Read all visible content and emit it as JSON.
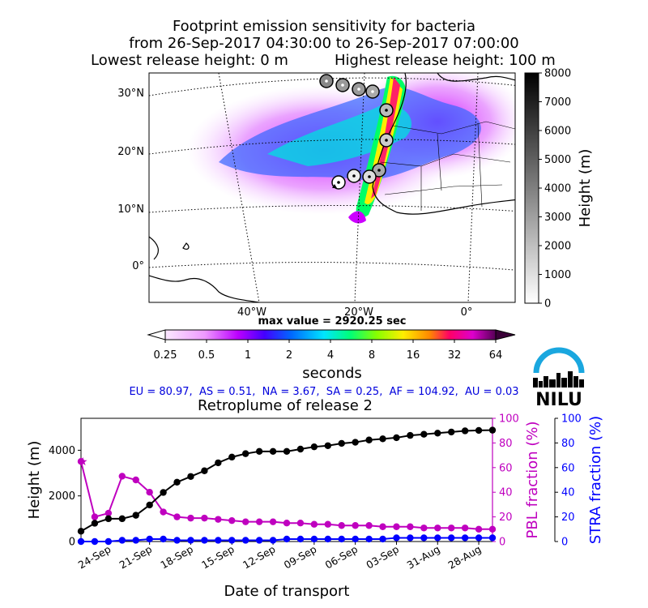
{
  "header": {
    "title_line1": "Footprint emission sensitivity for bacteria",
    "title_line2": "from 26-Sep-2017 04:30:00 to 26-Sep-2017 07:00:00",
    "lowest_release": "Lowest release height: 0 m",
    "highest_release": "Highest release height: 100 m"
  },
  "map": {
    "lat_labels": [
      "30°N",
      "20°N",
      "10°N",
      "0°"
    ],
    "lon_labels": [
      "40°W",
      "20°W",
      "0°"
    ],
    "max_value_text": "max value = 2920.25 sec"
  },
  "height_colorbar": {
    "label": "Height (m)",
    "ticks": [
      "0",
      "1000",
      "2000",
      "3000",
      "4000",
      "5000",
      "6000",
      "7000",
      "8000"
    ]
  },
  "sensitivity_colorbar": {
    "label": "seconds",
    "ticks": [
      "0.25",
      "0.5",
      "1",
      "2",
      "4",
      "8",
      "16",
      "32",
      "64"
    ]
  },
  "fractions_text": "EU = 80.97,  AS = 0.51,  NA = 3.67,  SA = 0.25,  AF = 104.92,  AU = 0.03",
  "logo": {
    "text": "NILU",
    "color": "#1aa7df"
  },
  "chart_data": {
    "type": "line",
    "title": "Retroplume of release 2",
    "xlabel": "Date of transport",
    "ylabel_left": "Height (m)",
    "ylabel_right1": "PBL fraction (%)",
    "ylabel_right2": "STRA fraction (%)",
    "x_tick_labels": [
      "24-Sep",
      "21-Sep",
      "18-Sep",
      "15-Sep",
      "12-Sep",
      "09-Sep",
      "06-Sep",
      "03-Sep",
      "31-Aug",
      "28-Aug"
    ],
    "x_tick_days_before_start": [
      2,
      5,
      8,
      11,
      14,
      17,
      20,
      23,
      26,
      29
    ],
    "x_range_days_before_start": [
      0,
      30
    ],
    "y_left_ticks": [
      "0",
      "2000",
      "4000"
    ],
    "y_left_range": [
      0,
      5400
    ],
    "y_right_ticks": [
      "0",
      "20",
      "40",
      "60",
      "80",
      "100"
    ],
    "y_right_range": [
      0,
      100
    ],
    "colors": {
      "height": "#000000",
      "pbl": "#bf00bf",
      "stra": "#0000ff"
    },
    "series": [
      {
        "name": "Height",
        "axis": "left",
        "x": [
          0,
          1,
          2,
          3,
          4,
          5,
          6,
          7,
          8,
          9,
          10,
          11,
          12,
          13,
          14,
          15,
          16,
          17,
          18,
          19,
          20,
          21,
          22,
          23,
          24,
          25,
          26,
          27,
          28,
          29,
          30
        ],
        "values": [
          450,
          800,
          1000,
          1000,
          1150,
          1600,
          2150,
          2600,
          2850,
          3100,
          3450,
          3700,
          3850,
          3950,
          3950,
          3950,
          4050,
          4150,
          4200,
          4300,
          4350,
          4450,
          4500,
          4550,
          4650,
          4700,
          4750,
          4800,
          4850,
          4870,
          4880
        ]
      },
      {
        "name": "PBL fraction",
        "axis": "right1",
        "x": [
          0,
          1,
          2,
          3,
          4,
          5,
          6,
          7,
          8,
          9,
          10,
          11,
          12,
          13,
          14,
          15,
          16,
          17,
          18,
          19,
          20,
          21,
          22,
          23,
          24,
          25,
          26,
          27,
          28,
          29,
          30
        ],
        "values": [
          65,
          20,
          23,
          53,
          50,
          40,
          24,
          20,
          19,
          19,
          18,
          17,
          16,
          16,
          16,
          15,
          15,
          14,
          14,
          13,
          13,
          13,
          12,
          12,
          12,
          11,
          11,
          11,
          11,
          10,
          10
        ]
      },
      {
        "name": "STRA fraction",
        "axis": "right2",
        "x": [
          0,
          1,
          2,
          3,
          4,
          5,
          6,
          7,
          8,
          9,
          10,
          11,
          12,
          13,
          14,
          15,
          16,
          17,
          18,
          19,
          20,
          21,
          22,
          23,
          24,
          25,
          26,
          27,
          28,
          29,
          30
        ],
        "values": [
          0,
          0,
          0,
          1,
          1,
          2,
          2,
          1,
          1,
          1,
          1,
          1,
          1,
          1,
          1,
          2,
          2,
          2,
          2,
          2,
          2,
          2,
          2,
          3,
          3,
          3,
          3,
          3,
          3,
          3,
          3
        ]
      }
    ]
  }
}
